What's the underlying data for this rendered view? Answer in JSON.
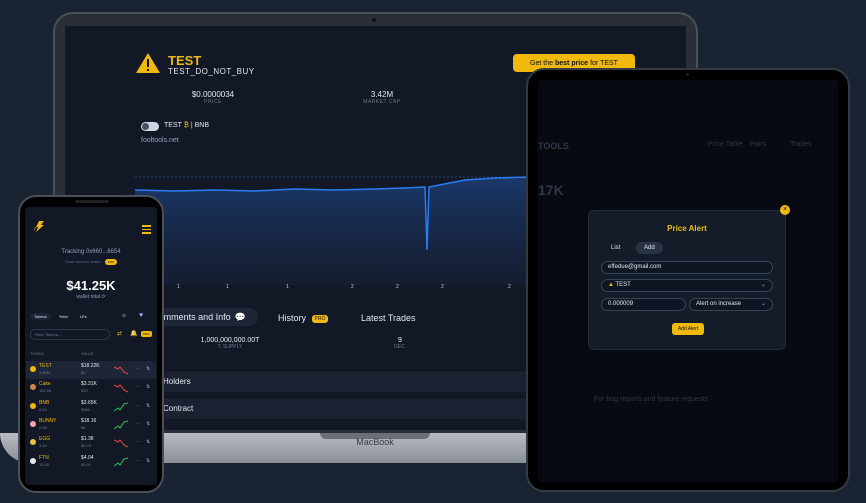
{
  "laptop": {
    "token_name": "TEST",
    "token_symbol": "TEST_DO_NOT_BUY",
    "best_price_prefix": "Get the",
    "best_price_bold": "best price",
    "best_price_suffix": "for TEST",
    "price_value": "$0.0000034",
    "price_label": "PRICE",
    "mcap_value": "3.42M",
    "mcap_label": "MARKET CAP",
    "pair_left": "TEST",
    "pair_right": "BNB",
    "site": "fooltools.net",
    "x_ticks": [
      "1",
      "1",
      "1",
      "2",
      "2",
      "2",
      "2"
    ],
    "tab_comments": "Comments and Info",
    "tab_history": "History",
    "pro_badge": "PRO",
    "tab_trades": "Latest Trades",
    "supply_value": "1,000,000,000.00T",
    "supply_label": "T. SUPPLY",
    "dec_value": "9",
    "dec_label": "DEC.",
    "section_holders": "Holders",
    "section_contract": "Contract",
    "brand": "MacBook"
  },
  "tablet": {
    "bg_brand": "TOOLS",
    "bg_value": "17K",
    "bg_tabs": [
      "Price Table",
      "Pairs",
      "Trades"
    ],
    "footer": "For bug reports and feature requests",
    "modal": {
      "title": "Price Alert",
      "tab_list": "List",
      "tab_add": "Add",
      "email": "effedue@gmail.com",
      "token": "TEST",
      "amount": "0.000009",
      "condition": "Alert on increase",
      "add_button": "Add Alert",
      "close": "×"
    }
  },
  "phone": {
    "tracking": "Tracking 0x660...6654",
    "track_other": "Track another wallet",
    "pro_badge": "PRO",
    "wallet_value": "$41.25K",
    "wallet_label": "wallet total",
    "tabs": [
      "Tokens",
      "Yield",
      "LPs"
    ],
    "filter_placeholder": "Filter Tokens...",
    "col_token": "TOKEN",
    "col_value": "VALUE",
    "rows": [
      {
        "name": "TEST",
        "sub": "3.88M",
        "value": "$18.22K",
        "vsub": "$0",
        "trend": "down",
        "color": "#f0b90b"
      },
      {
        "name": "Cake",
        "sub": "162.00",
        "value": "$3.31K",
        "vsub": "$20",
        "trend": "down",
        "color": "#d1884f"
      },
      {
        "name": "BNB",
        "sub": "5.53",
        "value": "$3.65K",
        "vsub": "$660",
        "trend": "up",
        "color": "#f0b90b"
      },
      {
        "name": "BUNNY",
        "sub": "2.88",
        "value": "$18.16",
        "vsub": "$6",
        "trend": "up",
        "color": "#f5a3b5"
      },
      {
        "name": "EGG",
        "sub": "3.20",
        "value": "$1.38",
        "vsub": "$0.43",
        "trend": "down",
        "color": "#e8c547"
      },
      {
        "name": "FTN",
        "sub": "13.00",
        "value": "$4.04",
        "vsub": "$0.31",
        "trend": "up",
        "color": "#e6e9ef"
      }
    ]
  }
}
